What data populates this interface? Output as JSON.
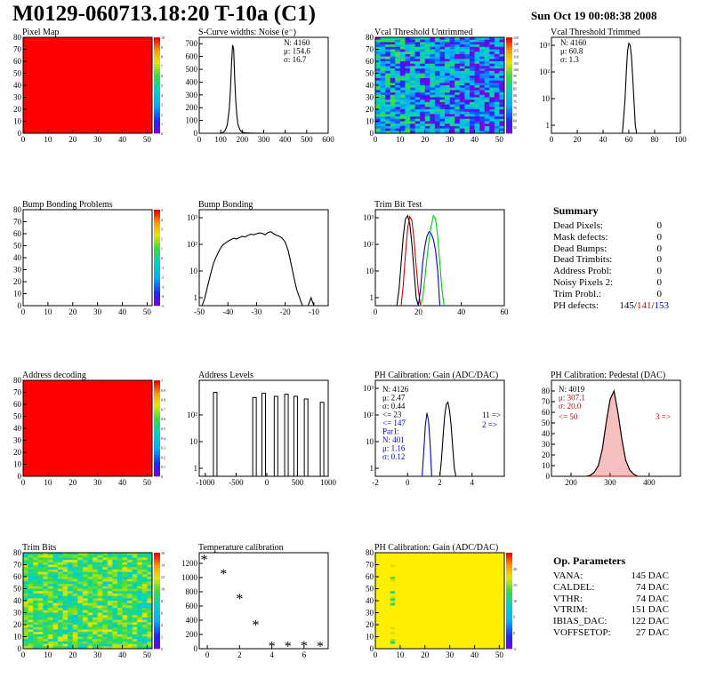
{
  "page": {
    "title": "M0129-060713.18:20 T-10a (C1)",
    "date": "Sun Oct 19 00:08:38 2008"
  },
  "chart_data": [
    {
      "id": "pixel-map",
      "type": "heatmap",
      "title": "Pixel Map",
      "xlim": [
        0,
        52
      ],
      "ylim": [
        0,
        80
      ],
      "xticks": [
        0,
        10,
        20,
        30,
        40,
        50
      ],
      "yticks": [
        0,
        10,
        20,
        30,
        40,
        50,
        60,
        70,
        80
      ],
      "fill": "uniform-high",
      "zlim": [
        0,
        10
      ],
      "zticks": [
        0,
        1,
        2,
        3,
        4,
        5,
        6,
        7,
        8,
        9,
        10
      ]
    },
    {
      "id": "scurve-noise",
      "type": "line",
      "title": "S-Curve widths: Noise (e⁻)",
      "xlim": [
        0,
        600
      ],
      "ylim": [
        0,
        750
      ],
      "xticks": [
        0,
        100,
        200,
        300,
        400,
        500,
        600
      ],
      "yticks": [
        0,
        100,
        200,
        300,
        400,
        500,
        600,
        700
      ],
      "stats": [
        "N: 4160",
        "μ: 154.6",
        "σ: 16.7"
      ],
      "series": [
        {
          "name": "",
          "color": "#000000",
          "x": [
            90,
            100,
            110,
            120,
            130,
            140,
            145,
            150,
            155,
            160,
            165,
            170,
            175,
            180,
            190,
            200,
            210,
            230,
            260,
            300
          ],
          "y": [
            0,
            2,
            6,
            20,
            60,
            190,
            330,
            540,
            690,
            660,
            420,
            250,
            140,
            70,
            25,
            10,
            4,
            2,
            1,
            0
          ]
        }
      ]
    },
    {
      "id": "vcal-untrimmed",
      "type": "heatmap",
      "title": "Vcal Threshold Untrimmed",
      "xlim": [
        0,
        52
      ],
      "ylim": [
        0,
        80
      ],
      "xticks": [
        0,
        10,
        20,
        30,
        40,
        50
      ],
      "yticks": [
        0,
        10,
        20,
        30,
        40,
        50,
        60,
        70,
        80
      ],
      "fill": "noise",
      "zlim": [
        50,
        125
      ],
      "zticks": [
        55,
        60,
        65,
        70,
        75,
        80,
        85,
        90,
        95,
        100,
        105,
        110,
        115,
        120,
        125
      ]
    },
    {
      "id": "vcal-trimmed",
      "type": "line",
      "title": "Vcal Threshold Trimmed",
      "log": true,
      "xlim": [
        0,
        100
      ],
      "ylim": [
        0.5,
        2000
      ],
      "xticks": [
        0,
        20,
        40,
        60,
        80,
        100
      ],
      "yticks": [
        1,
        10,
        100,
        1000
      ],
      "ytick_labels": [
        "1",
        "10",
        "10²",
        "10³"
      ],
      "stats": [
        "N: 4160",
        "μ: 60.8",
        "σ: 1.3"
      ],
      "series": [
        {
          "name": "",
          "color": "#000000",
          "x": [
            55,
            56,
            57,
            58,
            59,
            60,
            61,
            62,
            63,
            64,
            65,
            66
          ],
          "y": [
            0.5,
            2,
            8,
            90,
            600,
            1200,
            1000,
            400,
            60,
            8,
            1,
            0.5
          ]
        }
      ]
    },
    {
      "id": "bump-bonding-problems",
      "type": "heatmap",
      "title": "Bump Bonding Problems",
      "xlim": [
        0,
        52
      ],
      "ylim": [
        0,
        80
      ],
      "xticks": [
        0,
        10,
        20,
        30,
        40,
        50
      ],
      "yticks": [
        0,
        10,
        20,
        30,
        40,
        50,
        60,
        70,
        80
      ],
      "fill": "empty",
      "zlim": [
        -5,
        5
      ],
      "zticks": [
        -5,
        -4,
        -3,
        -2,
        -1,
        0,
        1,
        2,
        3,
        4,
        5
      ]
    },
    {
      "id": "bump-bonding",
      "type": "line",
      "title": "Bump Bonding",
      "log": true,
      "xlim": [
        -50,
        -5
      ],
      "ylim": [
        0.5,
        2000
      ],
      "xticks": [
        -50,
        -40,
        -30,
        -20,
        -10
      ],
      "yticks": [
        1,
        10,
        100,
        1000
      ],
      "ytick_labels": [
        "1",
        "10",
        "10²",
        "10³"
      ],
      "series": [
        {
          "name": "",
          "color": "#000000",
          "x": [
            -49,
            -48,
            -47,
            -46,
            -45,
            -44,
            -43,
            -42,
            -41,
            -40,
            -39,
            -38,
            -37,
            -36,
            -35,
            -34,
            -33,
            -32,
            -31,
            -30,
            -29,
            -28,
            -27,
            -26,
            -25,
            -24,
            -23,
            -22,
            -21,
            -20,
            -19,
            -18,
            -17,
            -16,
            -15,
            -14,
            -13,
            -12,
            -11,
            -10,
            -9
          ],
          "y": [
            0.5,
            1,
            3,
            8,
            20,
            35,
            60,
            90,
            110,
            130,
            150,
            170,
            160,
            180,
            200,
            190,
            220,
            240,
            230,
            250,
            270,
            260,
            230,
            280,
            300,
            250,
            220,
            200,
            170,
            120,
            60,
            20,
            6,
            2,
            1,
            0.5,
            0.5,
            0.5,
            1,
            0.5,
            0.5
          ]
        }
      ]
    },
    {
      "id": "trim-bit-test",
      "type": "line",
      "title": "Trim Bit Test",
      "log": true,
      "xlim": [
        0,
        60
      ],
      "ylim": [
        0.5,
        2000
      ],
      "xticks": [
        0,
        20,
        40,
        60
      ],
      "yticks": [
        1,
        10,
        100,
        1000
      ],
      "ytick_labels": [
        "1",
        "10",
        "10²",
        "10³"
      ],
      "series": [
        {
          "name": "",
          "color": "#000000",
          "x": [
            10,
            11,
            12,
            13,
            14,
            15,
            16,
            17,
            18,
            19,
            20,
            21,
            22,
            23
          ],
          "y": [
            0.5,
            2,
            20,
            200,
            900,
            1200,
            600,
            100,
            10,
            1,
            0.5,
            0.5,
            0.5,
            0.5
          ]
        },
        {
          "name": "",
          "color": "#cc0000",
          "x": [
            12,
            13,
            14,
            15,
            16,
            17,
            18,
            19,
            20,
            21,
            22
          ],
          "y": [
            0.5,
            3,
            40,
            400,
            1100,
            800,
            150,
            15,
            2,
            0.5,
            0.5
          ]
        },
        {
          "name": "",
          "color": "#0000cc",
          "x": [
            20,
            21,
            22,
            23,
            24,
            25,
            26,
            27,
            28,
            29,
            30
          ],
          "y": [
            0.5,
            2,
            20,
            80,
            200,
            300,
            250,
            150,
            60,
            10,
            0.5
          ]
        },
        {
          "name": "",
          "color": "#00cc00",
          "x": [
            21,
            22,
            23,
            24,
            25,
            26,
            27,
            28,
            29,
            30,
            31,
            32
          ],
          "y": [
            0.5,
            1,
            5,
            30,
            150,
            500,
            1200,
            900,
            200,
            20,
            2,
            0.5
          ]
        }
      ]
    },
    {
      "id": "address-decoding",
      "type": "heatmap",
      "title": "Address decoding",
      "xlim": [
        0,
        52
      ],
      "ylim": [
        0,
        80
      ],
      "xticks": [
        0,
        10,
        20,
        30,
        40,
        50
      ],
      "yticks": [
        0,
        10,
        20,
        30,
        40,
        50,
        60,
        70,
        80
      ],
      "fill": "uniform-high",
      "zlim": [
        0,
        1
      ],
      "zticks": [
        0,
        0.1,
        0.2,
        0.3,
        0.4,
        0.5,
        0.6,
        0.7,
        0.8,
        0.9,
        1
      ]
    },
    {
      "id": "address-levels",
      "type": "line",
      "title": "Address Levels",
      "log": true,
      "xlim": [
        -1100,
        1000
      ],
      "ylim": [
        0.5,
        2000
      ],
      "xticks": [
        -1000,
        -500,
        0,
        500,
        1000
      ],
      "yticks": [
        1,
        10,
        100
      ],
      "ytick_labels": [
        "1",
        "10",
        "10²"
      ],
      "series": [
        {
          "name": "",
          "color": "#000000",
          "spikes": [
            [
              -840,
              700
            ],
            [
              -200,
              450
            ],
            [
              -50,
              650
            ],
            [
              150,
              500
            ],
            [
              320,
              600
            ],
            [
              470,
              500
            ],
            [
              640,
              400
            ],
            [
              900,
              300
            ]
          ]
        }
      ]
    },
    {
      "id": "ph-gain",
      "type": "line",
      "title": "PH Calibration: Gain (ADC/DAC)",
      "log": true,
      "xlim": [
        -2,
        6
      ],
      "ylim": [
        0.5,
        2000
      ],
      "xticks": [
        -2,
        0,
        2,
        4
      ],
      "yticks": [
        1,
        10,
        100,
        1000
      ],
      "ytick_labels": [
        "1",
        "10",
        "10²",
        "10³"
      ],
      "stats": [
        "N: 4126",
        "μ: 2.47",
        "σ: 0.44",
        "<= 23",
        "<= 147",
        "Par1:",
        "N: 401",
        "μ: 1.16",
        "σ: 0.12",
        "11 =>",
        "2 =>"
      ],
      "series": [
        {
          "name": "",
          "color": "#000000",
          "x": [
            2.0,
            2.1,
            2.2,
            2.3,
            2.4,
            2.5,
            2.6,
            2.7,
            2.8,
            2.9,
            3.0
          ],
          "y": [
            0.5,
            2,
            15,
            90,
            250,
            300,
            150,
            40,
            6,
            1,
            0.5
          ]
        },
        {
          "name": "",
          "color": "#0000cc",
          "x": [
            0.9,
            1.0,
            1.1,
            1.2,
            1.3,
            1.4,
            1.5
          ],
          "y": [
            0.5,
            4,
            40,
            120,
            60,
            8,
            0.5
          ]
        }
      ]
    },
    {
      "id": "ph-pedestal",
      "type": "line",
      "title": "PH Calibration: Pedestal (DAC)",
      "xlim": [
        150,
        480
      ],
      "ylim": [
        0,
        90
      ],
      "xticks": [
        200,
        300,
        400
      ],
      "yticks": [
        0,
        10,
        20,
        30,
        40,
        50,
        60,
        70,
        80
      ],
      "stats": [
        "N: 4019",
        "μ: 307.1",
        "σ: 20.0",
        "<= 50",
        "3 =>"
      ],
      "series": [
        {
          "name": "",
          "color": "#000000",
          "x": [
            240,
            250,
            260,
            270,
            280,
            290,
            300,
            310,
            320,
            330,
            340,
            350,
            360,
            370
          ],
          "y": [
            0,
            1,
            4,
            10,
            25,
            50,
            72,
            80,
            60,
            35,
            15,
            6,
            2,
            0
          ]
        }
      ]
    },
    {
      "id": "trim-bits",
      "type": "heatmap",
      "title": "Trim Bits",
      "xlim": [
        0,
        52
      ],
      "ylim": [
        0,
        80
      ],
      "xticks": [
        0,
        10,
        20,
        30,
        40,
        50
      ],
      "yticks": [
        0,
        10,
        20,
        30,
        40,
        50,
        60,
        70,
        80
      ],
      "fill": "noise-green",
      "zlim": [
        0,
        16
      ],
      "zticks": [
        0,
        2,
        4,
        6,
        8,
        10,
        12,
        14,
        16
      ]
    },
    {
      "id": "temperature-calibration",
      "type": "scatter",
      "title": "Temperature calibration",
      "xlim": [
        -0.5,
        7.5
      ],
      "ylim": [
        0,
        1350
      ],
      "xticks": [
        0,
        2,
        4,
        6
      ],
      "yticks": [
        0,
        200,
        400,
        600,
        800,
        1000,
        1200
      ],
      "series": [
        {
          "name": "",
          "color": "#000000",
          "x": [
            -0.2,
            1,
            2,
            3,
            4,
            5,
            6,
            7
          ],
          "y": [
            1250,
            1050,
            700,
            330,
            30,
            30,
            40,
            30
          ]
        }
      ]
    },
    {
      "id": "ph-gain-map",
      "type": "heatmap",
      "title": "PH Calibration: Gain (ADC/DAC)",
      "xlim": [
        0,
        52
      ],
      "ylim": [
        0,
        80
      ],
      "xticks": [
        0,
        10,
        20,
        30,
        40,
        50
      ],
      "yticks": [
        0,
        10,
        20,
        30,
        40,
        50,
        60,
        70,
        80
      ],
      "fill": "uniform-mid",
      "zlim": [
        -5,
        25
      ],
      "zticks": [
        -5,
        0,
        5,
        10,
        15,
        20
      ]
    }
  ],
  "summary": {
    "title": "Summary",
    "rows": [
      {
        "label": "Dead Pixels:",
        "value": "0"
      },
      {
        "label": "Mask defects:",
        "value": "0"
      },
      {
        "label": "Dead Bumps:",
        "value": "0"
      },
      {
        "label": "Dead Trimbits:",
        "value": "0"
      },
      {
        "label": "Address Probl:",
        "value": "0"
      },
      {
        "label": "Noisy Pixels 2:",
        "value": "0"
      },
      {
        "label": "Trim Probl.:",
        "value": "0"
      }
    ],
    "ph_label": "PH defects:",
    "ph_values": [
      "145",
      "141",
      "153"
    ],
    "ph_colors": [
      "#000000",
      "#cc0000",
      "#0000cc"
    ]
  },
  "op_params": {
    "title": "Op. Parameters",
    "rows": [
      {
        "label": "VANA:",
        "value": "145 DAC"
      },
      {
        "label": "CALDEL:",
        "value": "74 DAC"
      },
      {
        "label": "VTHR:",
        "value": "74 DAC"
      },
      {
        "label": "VTRIM:",
        "value": "151 DAC"
      },
      {
        "label": "IBIAS_DAC:",
        "value": "122 DAC"
      },
      {
        "label": "VOFFSETOP:",
        "value": "27 DAC"
      }
    ]
  }
}
